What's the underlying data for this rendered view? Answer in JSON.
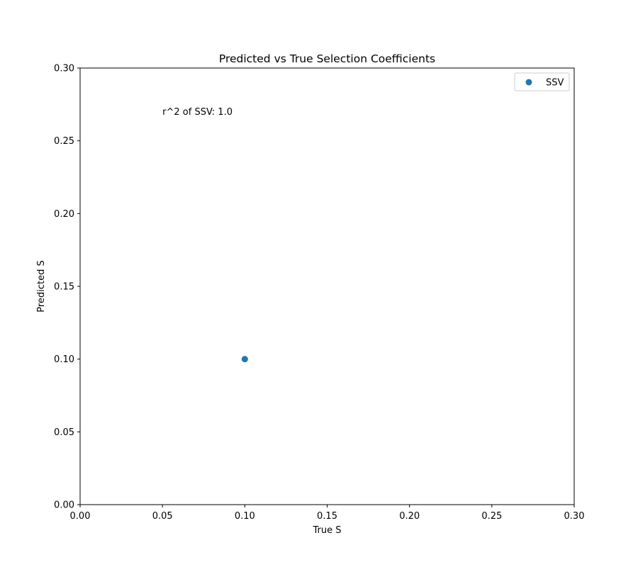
{
  "chart_data": {
    "type": "scatter",
    "title": "Predicted vs True Selection Coefficients",
    "xlabel": "True S",
    "ylabel": "Predicted S",
    "xlim": [
      0.0,
      0.3
    ],
    "ylim": [
      0.0,
      0.3
    ],
    "xticks": [
      "0.00",
      "0.05",
      "0.10",
      "0.15",
      "0.20",
      "0.25",
      "0.30"
    ],
    "yticks": [
      "0.00",
      "0.05",
      "0.10",
      "0.15",
      "0.20",
      "0.25",
      "0.30"
    ],
    "grid": false,
    "legend_position": "top-right",
    "series": [
      {
        "name": "SSV",
        "color": "#1f77b4",
        "points": [
          {
            "x": 0.1,
            "y": 0.1
          }
        ]
      }
    ],
    "annotations": [
      {
        "text": "r^2 of SSV: 1.0",
        "x": 0.05,
        "y": 0.27
      }
    ]
  }
}
